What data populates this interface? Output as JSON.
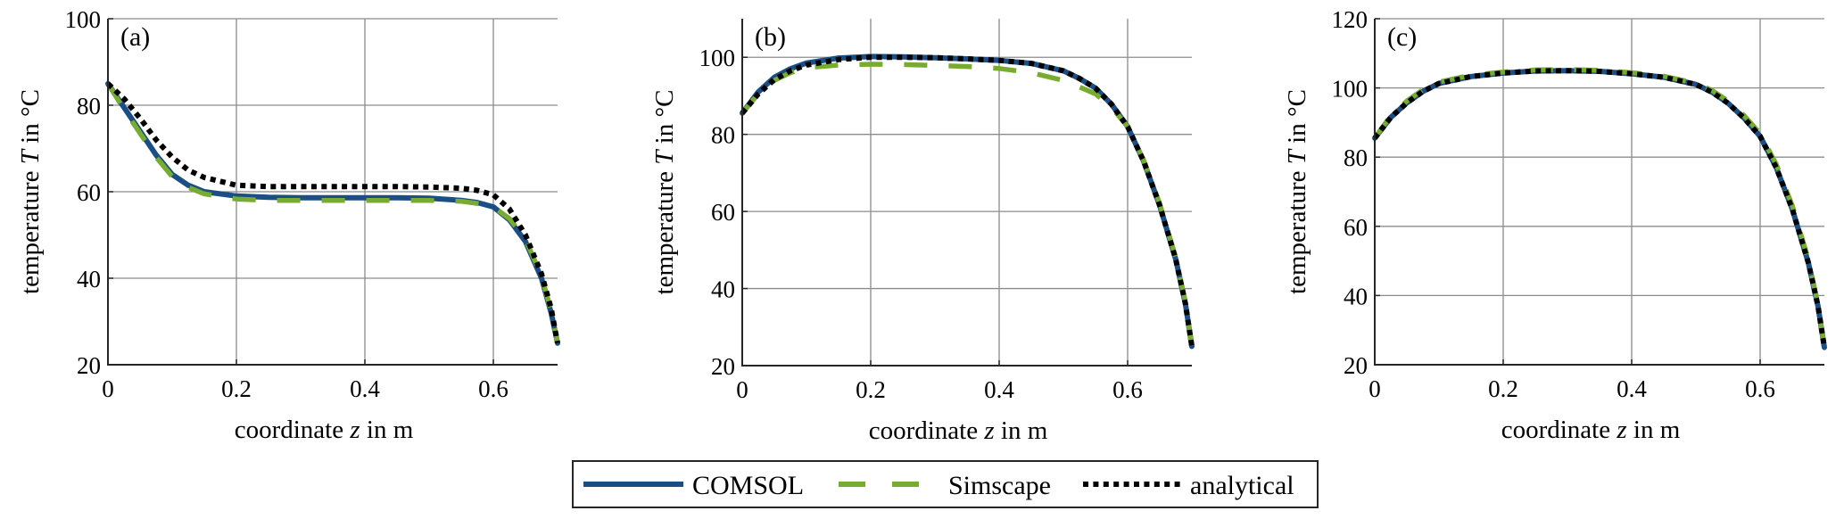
{
  "colors": {
    "COMSOL": "#1c4e86",
    "Simscape": "#77ac30",
    "analytical": "#000000"
  },
  "legend": {
    "placement": "bottom-center",
    "entries": [
      {
        "label": "COMSOL",
        "style": "solid"
      },
      {
        "label": "Simscape",
        "style": "dashed"
      },
      {
        "label": "analytical",
        "style": "dotted"
      }
    ]
  },
  "chart_data": [
    {
      "type": "line",
      "panel_label": "(a)",
      "xlabel_parts": [
        "coordinate ",
        "z",
        " in m"
      ],
      "ylabel_parts": [
        "temperature ",
        "T",
        " in °C"
      ],
      "xlim": [
        0,
        0.7
      ],
      "ylim": [
        20,
        100
      ],
      "xticks": [
        0,
        0.2,
        0.4,
        0.6
      ],
      "xtick_labels": [
        "0",
        "0.2",
        "0.4",
        "0.6"
      ],
      "yticks": [
        20,
        40,
        60,
        80,
        100
      ],
      "ytick_labels": [
        "20",
        "40",
        "60",
        "80",
        "100"
      ],
      "grid": true,
      "x": [
        0,
        0.025,
        0.05,
        0.075,
        0.1,
        0.125,
        0.15,
        0.2,
        0.25,
        0.3,
        0.35,
        0.4,
        0.45,
        0.5,
        0.55,
        0.575,
        0.6,
        0.625,
        0.65,
        0.675,
        0.69,
        0.7
      ],
      "series": [
        {
          "name": "COMSOL",
          "values": [
            85,
            79.5,
            74,
            68.5,
            64,
            61.5,
            60,
            59,
            58.7,
            58.6,
            58.6,
            58.6,
            58.6,
            58.5,
            58,
            57.5,
            56.5,
            53.5,
            48.5,
            40,
            32,
            25
          ]
        },
        {
          "name": "Simscape",
          "values": [
            85,
            79,
            73.5,
            68,
            63.5,
            61,
            59.5,
            58.3,
            58,
            58,
            58,
            58,
            58,
            58,
            57.8,
            57.3,
            56.5,
            53.8,
            49,
            40.5,
            32.5,
            25
          ]
        },
        {
          "name": "analytical",
          "values": [
            85,
            81.5,
            77,
            72,
            68,
            65,
            63.3,
            61.5,
            61.2,
            61.2,
            61.2,
            61.2,
            61.2,
            61.1,
            60.8,
            60.3,
            59.3,
            56,
            50,
            41,
            33,
            25
          ]
        }
      ]
    },
    {
      "type": "line",
      "panel_label": "(b)",
      "xlabel_parts": [
        "coordinate ",
        "z",
        " in m"
      ],
      "ylabel_parts": [
        "temperature ",
        "T",
        " in °C"
      ],
      "xlim": [
        0,
        0.7
      ],
      "ylim": [
        20,
        110
      ],
      "xticks": [
        0,
        0.2,
        0.4,
        0.6
      ],
      "xtick_labels": [
        "0",
        "0.2",
        "0.4",
        "0.6"
      ],
      "yticks": [
        20,
        40,
        60,
        80,
        100
      ],
      "ytick_labels": [
        "20",
        "40",
        "60",
        "80",
        "100"
      ],
      "grid": true,
      "x": [
        0,
        0.025,
        0.05,
        0.075,
        0.1,
        0.15,
        0.2,
        0.25,
        0.3,
        0.35,
        0.4,
        0.45,
        0.5,
        0.525,
        0.55,
        0.575,
        0.6,
        0.625,
        0.65,
        0.675,
        0.69,
        0.7
      ],
      "series": [
        {
          "name": "COMSOL",
          "values": [
            85.5,
            91,
            94.8,
            97,
            98.5,
            99.8,
            100.2,
            100.1,
            99.9,
            99.6,
            99.2,
            98.4,
            96.5,
            94.5,
            92,
            87.8,
            82,
            73,
            61.5,
            47.5,
            36,
            25
          ]
        },
        {
          "name": "Simscape",
          "values": [
            85.5,
            90.5,
            94,
            96,
            97.3,
            98,
            98.2,
            98.1,
            97.9,
            97.6,
            97.1,
            96,
            94,
            92.3,
            90.5,
            87,
            82,
            73.3,
            62,
            48,
            36.5,
            25
          ]
        },
        {
          "name": "analytical",
          "values": [
            85.5,
            90.5,
            94.2,
            96.5,
            98,
            99.4,
            100,
            100,
            99.9,
            99.6,
            99.2,
            98.4,
            96.5,
            94.5,
            92,
            87.8,
            82,
            73,
            61.5,
            47.5,
            36,
            25
          ]
        }
      ]
    },
    {
      "type": "line",
      "panel_label": "(c)",
      "xlabel_parts": [
        "coordinate ",
        "z",
        " in m"
      ],
      "ylabel_parts": [
        "temperature ",
        "T",
        " in °C"
      ],
      "xlim": [
        0,
        0.7
      ],
      "ylim": [
        20,
        120
      ],
      "xticks": [
        0,
        0.2,
        0.4,
        0.6
      ],
      "xtick_labels": [
        "0",
        "0.2",
        "0.4",
        "0.6"
      ],
      "yticks": [
        20,
        40,
        60,
        80,
        100,
        120
      ],
      "ytick_labels": [
        "20",
        "40",
        "60",
        "80",
        "100",
        "120"
      ],
      "grid": true,
      "x": [
        0,
        0.025,
        0.05,
        0.075,
        0.1,
        0.15,
        0.2,
        0.25,
        0.3,
        0.35,
        0.4,
        0.45,
        0.5,
        0.525,
        0.55,
        0.575,
        0.6,
        0.625,
        0.65,
        0.675,
        0.69,
        0.7
      ],
      "series": [
        {
          "name": "COMSOL",
          "values": [
            85.5,
            91.5,
            95.7,
            99,
            101.3,
            103.3,
            104.3,
            104.9,
            105,
            104.8,
            104.1,
            103.1,
            101,
            98.8,
            95.6,
            91.3,
            86,
            77,
            65,
            49.5,
            37,
            25
          ]
        },
        {
          "name": "Simscape",
          "values": [
            85.5,
            92,
            96.2,
            99.5,
            101.7,
            103.7,
            104.6,
            105.2,
            105.3,
            105.1,
            104.4,
            103.4,
            101.4,
            99.3,
            96.2,
            92,
            86.8,
            78,
            66,
            50.5,
            37.5,
            25
          ]
        },
        {
          "name": "analytical",
          "values": [
            85.5,
            91.5,
            95.7,
            99,
            101.3,
            103.3,
            104.3,
            104.9,
            105,
            104.8,
            104.1,
            103.1,
            101,
            98.8,
            95.6,
            91.3,
            86,
            77,
            65,
            49.5,
            37,
            25
          ]
        }
      ]
    }
  ]
}
